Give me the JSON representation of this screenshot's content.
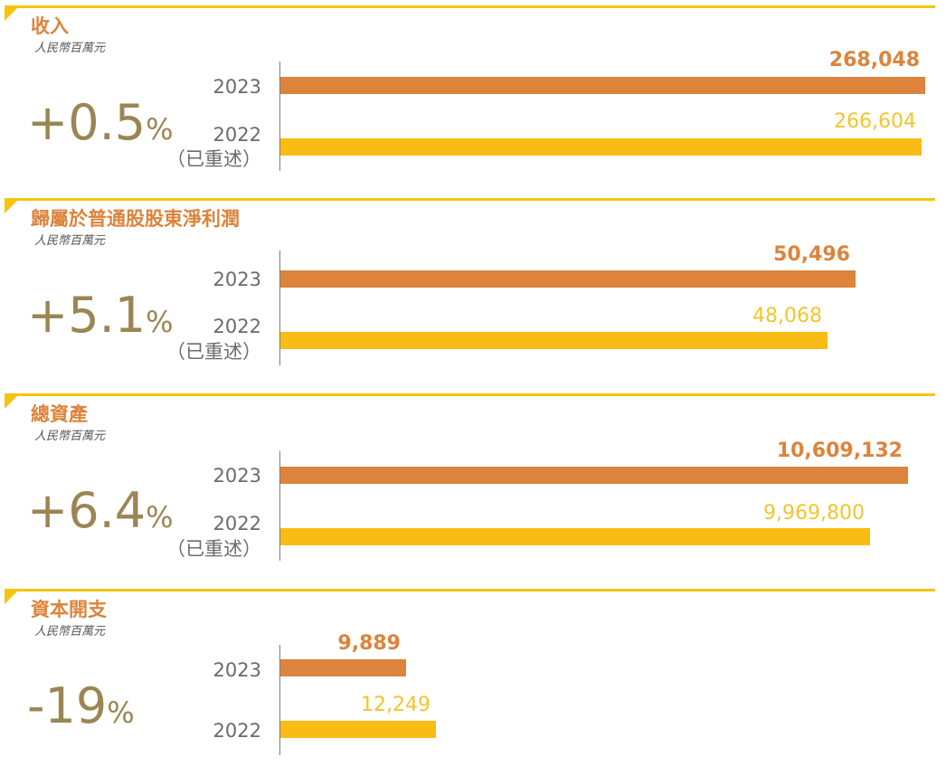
{
  "chart_data": [
    {
      "type": "bar",
      "orientation": "horizontal",
      "title": "收入",
      "unit": "人民幣百萬元",
      "change": "+0.5",
      "change_unit": "%",
      "categories": [
        "2023",
        "2022"
      ],
      "category_notes": [
        "",
        "（已重述）"
      ],
      "values": [
        268048,
        266604
      ],
      "value_labels": [
        "268,048",
        "266,604"
      ],
      "colors": [
        "#dd833b",
        "#f8bc14"
      ]
    },
    {
      "type": "bar",
      "orientation": "horizontal",
      "title": "歸屬於普通股股東淨利潤",
      "unit": "人民幣百萬元",
      "change": "+5.1",
      "change_unit": "%",
      "categories": [
        "2023",
        "2022"
      ],
      "category_notes": [
        "",
        "（已重述）"
      ],
      "values": [
        50496,
        48068
      ],
      "value_labels": [
        "50,496",
        "48,068"
      ],
      "colors": [
        "#dd833b",
        "#f8bc14"
      ]
    },
    {
      "type": "bar",
      "orientation": "horizontal",
      "title": "總資產",
      "unit": "人民幣百萬元",
      "change": "+6.4",
      "change_unit": "%",
      "categories": [
        "2023",
        "2022"
      ],
      "category_notes": [
        "",
        "（已重述）"
      ],
      "values": [
        10609132,
        9969800
      ],
      "value_labels": [
        "10,609,132",
        "9,969,800"
      ],
      "colors": [
        "#dd833b",
        "#f8bc14"
      ]
    },
    {
      "type": "bar",
      "orientation": "horizontal",
      "title": "資本開支",
      "unit": "人民幣百萬元",
      "change": "-19",
      "change_unit": "%",
      "categories": [
        "2023",
        "2022"
      ],
      "category_notes": [
        "",
        ""
      ],
      "values": [
        9889,
        12249
      ],
      "value_labels": [
        "9,889",
        "12,249"
      ],
      "colors": [
        "#dd833b",
        "#f8bc14"
      ]
    }
  ]
}
